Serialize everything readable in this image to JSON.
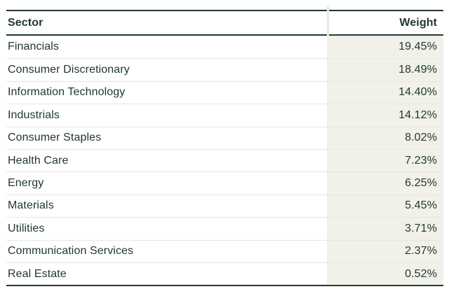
{
  "chart_data": {
    "type": "table",
    "columns": {
      "sector": "Sector",
      "weight": "Weight"
    },
    "rows": [
      {
        "sector": "Financials",
        "weight": "19.45%",
        "value": 19.45
      },
      {
        "sector": "Consumer Discretionary",
        "weight": "18.49%",
        "value": 18.49
      },
      {
        "sector": "Information Technology",
        "weight": "14.40%",
        "value": 14.4
      },
      {
        "sector": "Industrials",
        "weight": "14.12%",
        "value": 14.12
      },
      {
        "sector": "Consumer Staples",
        "weight": "8.02%",
        "value": 8.02
      },
      {
        "sector": "Health Care",
        "weight": "7.23%",
        "value": 7.23
      },
      {
        "sector": "Energy",
        "weight": "6.25%",
        "value": 6.25
      },
      {
        "sector": "Materials",
        "weight": "5.45%",
        "value": 5.45
      },
      {
        "sector": "Utilities",
        "weight": "3.71%",
        "value": 3.71
      },
      {
        "sector": "Communication Services",
        "weight": "2.37%",
        "value": 2.37
      },
      {
        "sector": "Real Estate",
        "weight": "0.52%",
        "value": 0.52
      }
    ],
    "layout": {
      "weight_column_align": "right",
      "grid": "horizontal-rules",
      "legend": "none"
    }
  },
  "colors": {
    "text": "#21392d",
    "heavy_rule": "#21392d",
    "row_separator": "#e5e7e0",
    "weight_column_bg": "#f1f1e9",
    "column_divider": "#e9ebe3",
    "page_bg": "#ffffff"
  }
}
